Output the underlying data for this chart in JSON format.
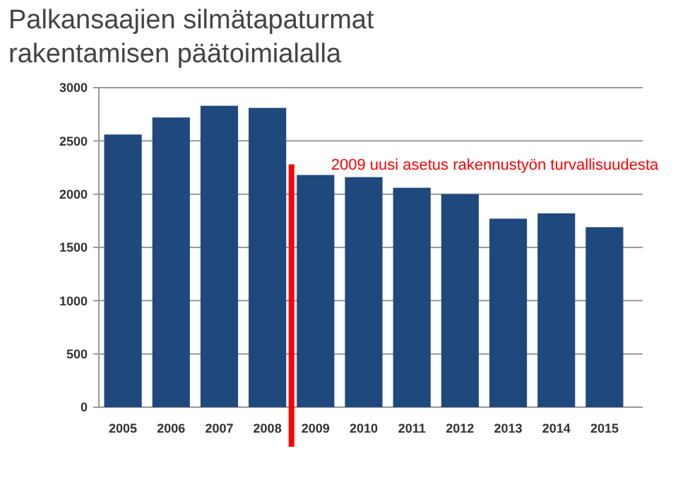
{
  "chart_data": {
    "type": "bar",
    "title": "Palkansaajien silmätapaturmat rakentamisen päätoimialalla",
    "categories": [
      "2005",
      "2006",
      "2007",
      "2008",
      "2009",
      "2010",
      "2011",
      "2012",
      "2013",
      "2014",
      "2015"
    ],
    "values": [
      2560,
      2720,
      2830,
      2810,
      2180,
      2160,
      2060,
      2000,
      1770,
      1820,
      1690
    ],
    "color": "#1f497d",
    "ylim": [
      0,
      3000
    ],
    "yticks": [
      0,
      500,
      1000,
      1500,
      2000,
      2500,
      3000
    ],
    "grid": "y",
    "ref_lines": [
      {
        "axis": "x",
        "value": "2009",
        "label": "2009 uusi asetus rakennustyön turvallisuudesta",
        "color": "#ff0000"
      }
    ]
  }
}
